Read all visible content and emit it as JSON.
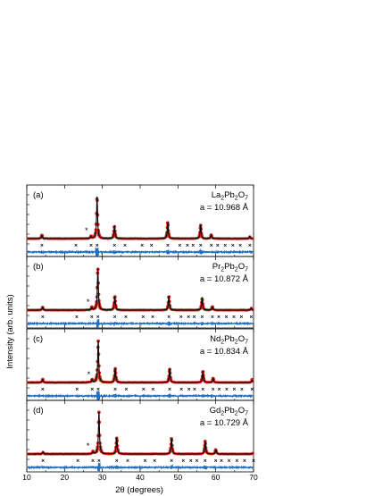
{
  "figure": {
    "xlabel": "2θ (degrees)",
    "ylabel": "Intensity (arb. units)"
  },
  "chart_data": [
    {
      "type": "scatter",
      "panel_label": "(a)",
      "compound": {
        "base": "La",
        "s1": "2",
        "mid": "Pb",
        "s2": "2",
        "end": "O",
        "s3": "7"
      },
      "lattice": "a = 10.968 Å",
      "xlim": [
        10,
        70
      ],
      "xticks": [
        10,
        20,
        30,
        40,
        50,
        60,
        70
      ],
      "peaks": [
        {
          "x": 14.0,
          "y": 0.08
        },
        {
          "x": 27.0,
          "y": 0.05
        },
        {
          "x": 28.6,
          "y": 1.0
        },
        {
          "x": 33.2,
          "y": 0.3
        },
        {
          "x": 47.3,
          "y": 0.38
        },
        {
          "x": 56.0,
          "y": 0.32
        },
        {
          "x": 58.8,
          "y": 0.09
        },
        {
          "x": 69.0,
          "y": 0.05
        }
      ],
      "impurity_marker": {
        "symbol": "*",
        "x": 25.8
      },
      "bragg_positions": [
        14.0,
        23.0,
        27.0,
        28.6,
        33.2,
        36.0,
        40.5,
        43.0,
        47.3,
        50.5,
        52.5,
        54.0,
        56.0,
        58.8,
        60.5,
        62.5,
        64.5,
        66.5,
        69.0
      ]
    },
    {
      "type": "scatter",
      "panel_label": "(b)",
      "compound": {
        "base": "Pr",
        "s1": "2",
        "mid": "Pb",
        "s2": "2",
        "end": "O",
        "s3": "7"
      },
      "lattice": "a = 10.872 Å",
      "xlim": [
        10,
        70
      ],
      "xticks": [
        10,
        20,
        30,
        40,
        50,
        60,
        70
      ],
      "peaks": [
        {
          "x": 14.2,
          "y": 0.07
        },
        {
          "x": 27.2,
          "y": 0.06
        },
        {
          "x": 28.8,
          "y": 1.0
        },
        {
          "x": 33.3,
          "y": 0.33
        },
        {
          "x": 47.6,
          "y": 0.33
        },
        {
          "x": 56.4,
          "y": 0.28
        },
        {
          "x": 59.1,
          "y": 0.08
        },
        {
          "x": 69.4,
          "y": 0.05
        }
      ],
      "impurity_marker": {
        "symbol": "*",
        "x": 26.2
      },
      "bragg_positions": [
        14.2,
        23.2,
        27.2,
        28.8,
        33.3,
        36.2,
        40.8,
        43.3,
        47.6,
        50.8,
        52.8,
        54.3,
        56.4,
        59.1,
        60.8,
        62.8,
        64.8,
        66.8,
        69.4
      ]
    },
    {
      "type": "scatter",
      "panel_label": "(c)",
      "compound": {
        "base": "Nd",
        "s1": "2",
        "mid": "Pb",
        "s2": "2",
        "end": "O",
        "s3": "7"
      },
      "lattice": "a = 10.834 Å",
      "xlim": [
        10,
        70
      ],
      "xticks": [
        10,
        20,
        30,
        40,
        50,
        60,
        70
      ],
      "peaks": [
        {
          "x": 14.2,
          "y": 0.07
        },
        {
          "x": 27.3,
          "y": 0.06
        },
        {
          "x": 28.9,
          "y": 1.0
        },
        {
          "x": 33.4,
          "y": 0.33
        },
        {
          "x": 47.8,
          "y": 0.32
        },
        {
          "x": 56.6,
          "y": 0.27
        },
        {
          "x": 59.3,
          "y": 0.1
        },
        {
          "x": 69.6,
          "y": 0.06
        }
      ],
      "impurity_marker": {
        "symbol": "*",
        "x": 26.4
      },
      "bragg_positions": [
        14.2,
        23.3,
        27.3,
        28.9,
        33.4,
        36.3,
        40.9,
        43.4,
        47.8,
        50.9,
        52.9,
        54.4,
        56.6,
        59.3,
        60.9,
        62.9,
        64.9,
        66.9,
        69.6
      ]
    },
    {
      "type": "scatter",
      "panel_label": "(d)",
      "compound": {
        "base": "Gd",
        "s1": "2",
        "mid": "Pb",
        "s2": "2",
        "end": "O",
        "s3": "7"
      },
      "lattice": "a = 10.729 Å",
      "xlim": [
        10,
        70
      ],
      "xticks": [
        10,
        20,
        30,
        40,
        50,
        60,
        70
      ],
      "peaks": [
        {
          "x": 14.3,
          "y": 0.05
        },
        {
          "x": 27.5,
          "y": 0.05
        },
        {
          "x": 29.1,
          "y": 1.0
        },
        {
          "x": 33.8,
          "y": 0.38
        },
        {
          "x": 48.3,
          "y": 0.37
        },
        {
          "x": 57.2,
          "y": 0.3
        },
        {
          "x": 60.0,
          "y": 0.1
        },
        {
          "x": 70.0,
          "y": 0.04
        }
      ],
      "impurity_marker": {
        "symbol": "*",
        "x": 26.2
      },
      "bragg_positions": [
        14.3,
        23.5,
        27.5,
        29.1,
        33.8,
        36.7,
        41.3,
        43.8,
        48.3,
        51.4,
        53.4,
        55.0,
        57.2,
        60.0,
        61.5,
        63.5,
        65.6,
        67.6,
        70.0
      ]
    }
  ]
}
